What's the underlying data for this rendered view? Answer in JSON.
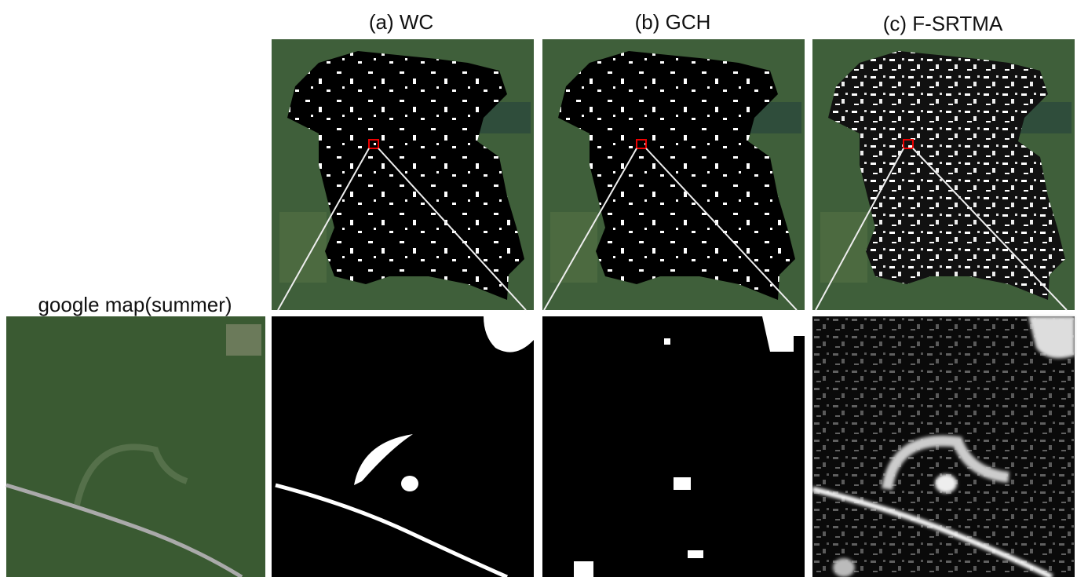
{
  "panels": [
    {
      "label": "(a) WC"
    },
    {
      "label": "(b) GCH"
    },
    {
      "label": "(c) F-SRTMA"
    }
  ],
  "reference": {
    "label": "google map(summer)"
  }
}
